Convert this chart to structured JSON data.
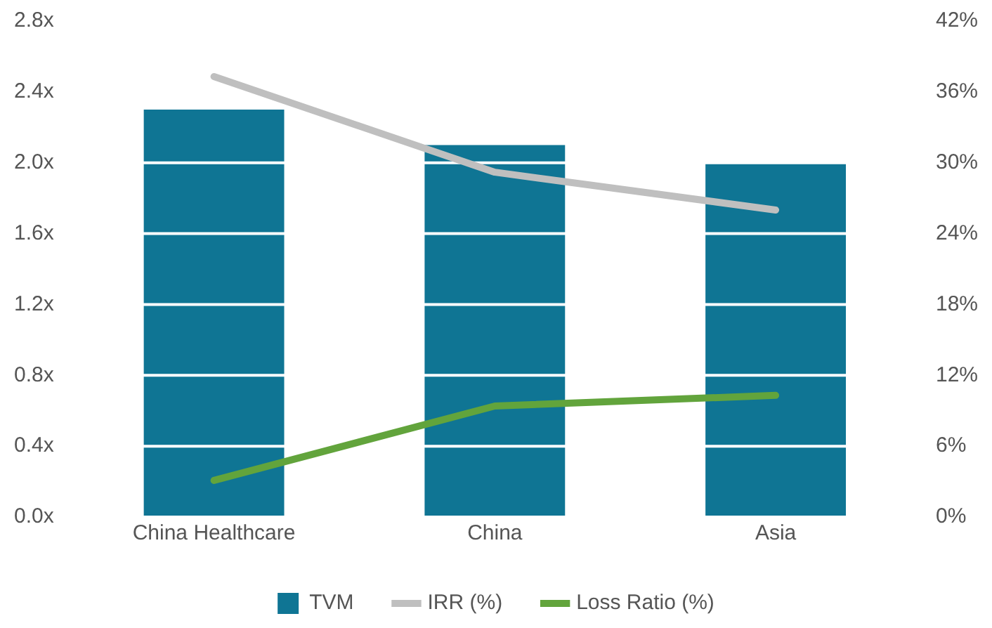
{
  "chart_data": {
    "type": "bar",
    "categories": [
      "China Healthcare",
      "China",
      "Asia"
    ],
    "series": [
      {
        "name": "TVM",
        "color": "#0f7594",
        "values": [
          2.3,
          2.1,
          2.0
        ]
      },
      {
        "name": "IRR (%)",
        "type": "line",
        "axis": "y2",
        "color": "#bfbfbf",
        "values": [
          37.3,
          29.2,
          26.0
        ]
      },
      {
        "name": "Loss Ratio (%)",
        "type": "line",
        "axis": "y2",
        "color": "#62a43c",
        "values": [
          3.1,
          9.4,
          10.3
        ]
      }
    ],
    "ylim": [
      0,
      2.8
    ],
    "yticks": [
      {
        "value": 0,
        "label": "0.0x"
      },
      {
        "value": 0.4,
        "label": "0.4x"
      },
      {
        "value": 0.8,
        "label": "0.8x"
      },
      {
        "value": 1.2,
        "label": "1.2x"
      },
      {
        "value": 1.6,
        "label": "1.6x"
      },
      {
        "value": 2.0,
        "label": "2.0x"
      },
      {
        "value": 2.4,
        "label": "2.4x"
      },
      {
        "value": 2.8,
        "label": "2.8x"
      }
    ],
    "y2lim": [
      0,
      42
    ],
    "y2ticks": [
      {
        "value": 0,
        "label": "0%"
      },
      {
        "value": 6,
        "label": "6%"
      },
      {
        "value": 12,
        "label": "12%"
      },
      {
        "value": 18,
        "label": "18%"
      },
      {
        "value": 24,
        "label": "24%"
      },
      {
        "value": 30,
        "label": "30%"
      },
      {
        "value": 36,
        "label": "36%"
      },
      {
        "value": 42,
        "label": "42%"
      }
    ],
    "grid": "y",
    "legend": "bottom",
    "marker": "none",
    "line_style": "solid"
  }
}
